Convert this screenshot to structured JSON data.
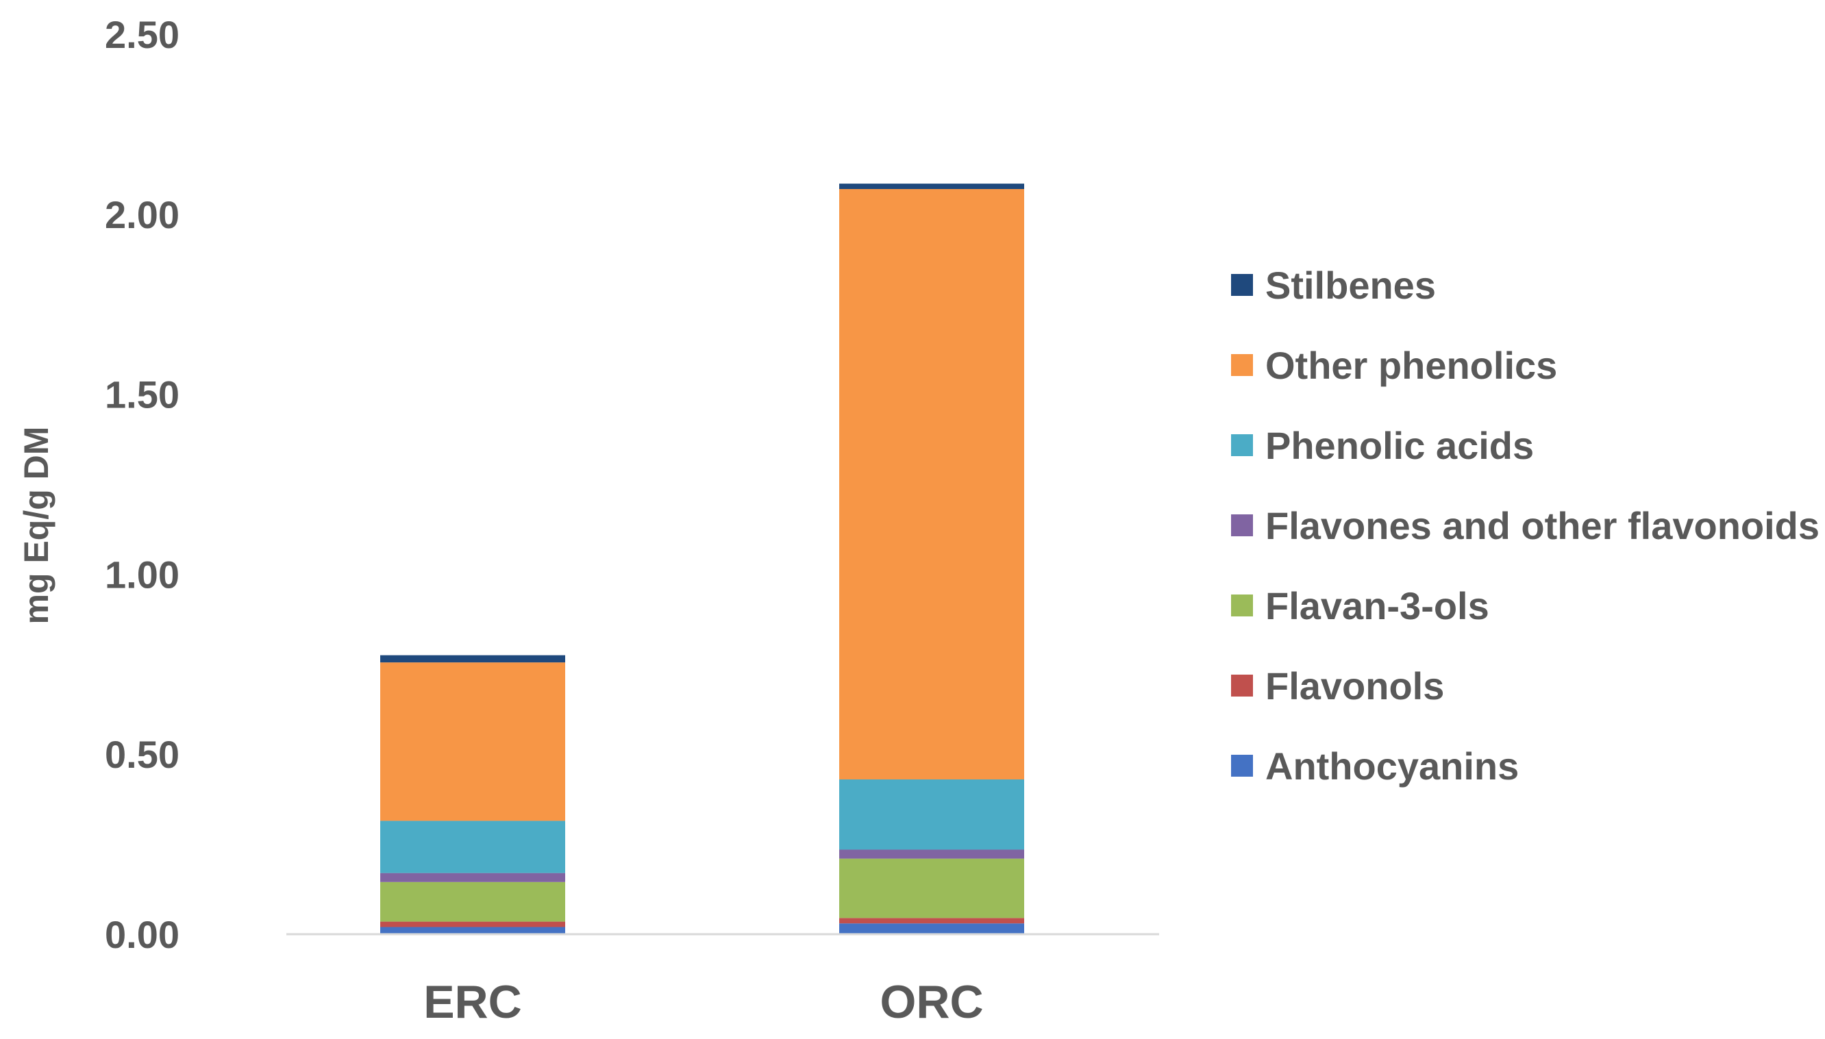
{
  "chart_data": {
    "type": "bar",
    "stacked": true,
    "title": "",
    "xlabel": "",
    "ylabel": "mg Eq/g DM",
    "ylim": [
      0,
      2.5
    ],
    "yticks": [
      "0.00",
      "0.50",
      "1.00",
      "1.50",
      "2.00",
      "2.50"
    ],
    "grid": false,
    "legend_position": "right",
    "categories": [
      "ERC",
      "ORC"
    ],
    "series": [
      {
        "name": "Anthocyanins",
        "color": "#4472C4",
        "values": [
          0.02,
          0.03
        ]
      },
      {
        "name": "Flavonols",
        "color": "#C0504D",
        "values": [
          0.015,
          0.015
        ]
      },
      {
        "name": "Flavan-3-ols",
        "color": "#9BBB59",
        "values": [
          0.11,
          0.165
        ]
      },
      {
        "name": "Flavones and other flavonoids",
        "color": "#8064A2",
        "values": [
          0.025,
          0.025
        ]
      },
      {
        "name": "Phenolic acids",
        "color": "#4BACC6",
        "values": [
          0.145,
          0.195
        ]
      },
      {
        "name": "Other phenolics",
        "color": "#F79646",
        "values": [
          0.44,
          1.64
        ]
      },
      {
        "name": "Stilbenes",
        "color": "#1F497D",
        "values": [
          0.02,
          0.015
        ]
      }
    ]
  }
}
